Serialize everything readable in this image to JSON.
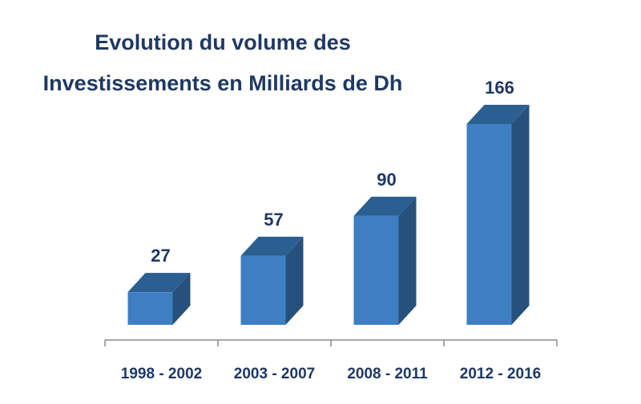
{
  "chart_data": {
    "type": "bar",
    "title_lines": [
      "Evolution du volume des",
      "Investissements en Milliards de Dh"
    ],
    "categories": [
      "1998 - 2002",
      "2003 - 2007",
      "2008 - 2011",
      "2012 - 2016"
    ],
    "values": [
      27,
      57,
      90,
      166
    ],
    "data_labels": [
      "27",
      "57",
      "90",
      "166"
    ],
    "ylim": [
      0,
      166
    ],
    "grid": false,
    "legend": "none",
    "style": "3d-column"
  },
  "colors": {
    "bar_front": "#3d7fc2",
    "bar_top": "#2c5f91",
    "bar_side": "#27507c",
    "text": "#1f3864",
    "axis": "#8a8a8a"
  }
}
